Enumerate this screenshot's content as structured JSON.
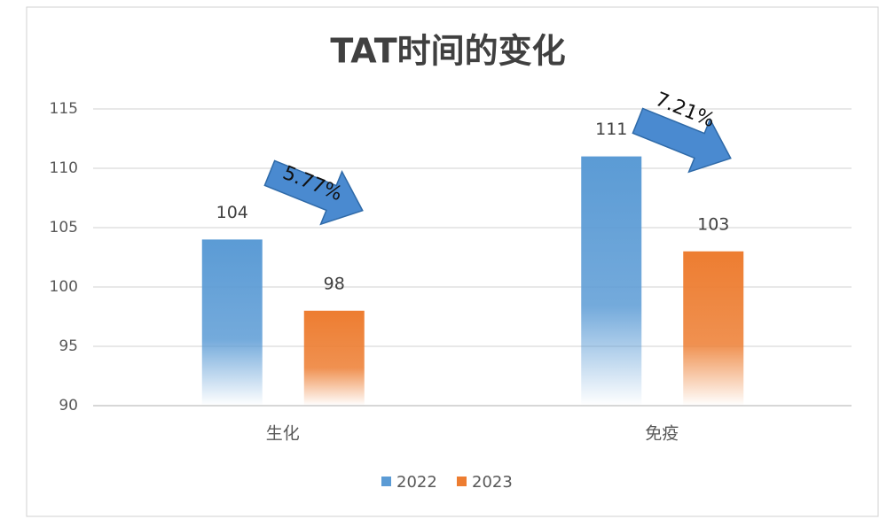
{
  "chart_data": {
    "type": "bar",
    "title": "TAT时间的变化",
    "categories": [
      "生化",
      "免疫"
    ],
    "series": [
      {
        "name": "2022",
        "color": "#5b9bd5",
        "values": [
          104,
          111
        ]
      },
      {
        "name": "2023",
        "color": "#ed7d31",
        "values": [
          98,
          103
        ]
      }
    ],
    "ylim": [
      90,
      115
    ],
    "yticks": [
      90,
      95,
      100,
      105,
      110,
      115
    ],
    "grid": true,
    "annotations": [
      "5.77%",
      "7.21%"
    ],
    "legend": "bottom"
  }
}
